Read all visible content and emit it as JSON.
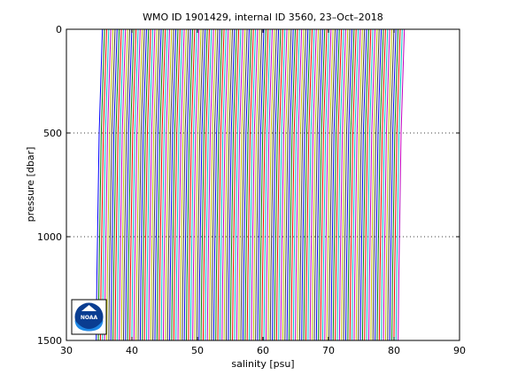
{
  "chart_data": {
    "type": "line",
    "title": "WMO ID 1901429, internal ID 3560, 23–Oct–2018",
    "xlabel": "salinity [psu]",
    "ylabel": "pressure [dbar]",
    "xlim": [
      30,
      90
    ],
    "ylim": [
      0,
      1500
    ],
    "y_reversed": true,
    "x_ticks": [
      30,
      40,
      50,
      60,
      70,
      80,
      90
    ],
    "y_ticks": [
      0,
      500,
      1000,
      1500
    ],
    "grid": "y-dotted",
    "legend": "none",
    "profile_count": 145,
    "profile_offset_step": 0.32,
    "series_colors": [
      "#0000ff",
      "#008000",
      "#ff0000",
      "#00bfbf",
      "#bf00bf",
      "#bfbf00",
      "#404040"
    ],
    "profile_shape": [
      {
        "pressure": 0,
        "salinity": 35.5
      },
      {
        "pressure": 100,
        "salinity": 35.4
      },
      {
        "pressure": 300,
        "salinity": 35.2
      },
      {
        "pressure": 500,
        "salinity": 35.0
      },
      {
        "pressure": 700,
        "salinity": 34.9
      },
      {
        "pressure": 900,
        "salinity": 34.8
      },
      {
        "pressure": 1200,
        "salinity": 34.65
      },
      {
        "pressure": 1500,
        "salinity": 34.55
      }
    ],
    "logo": {
      "text": "NOAA"
    }
  }
}
